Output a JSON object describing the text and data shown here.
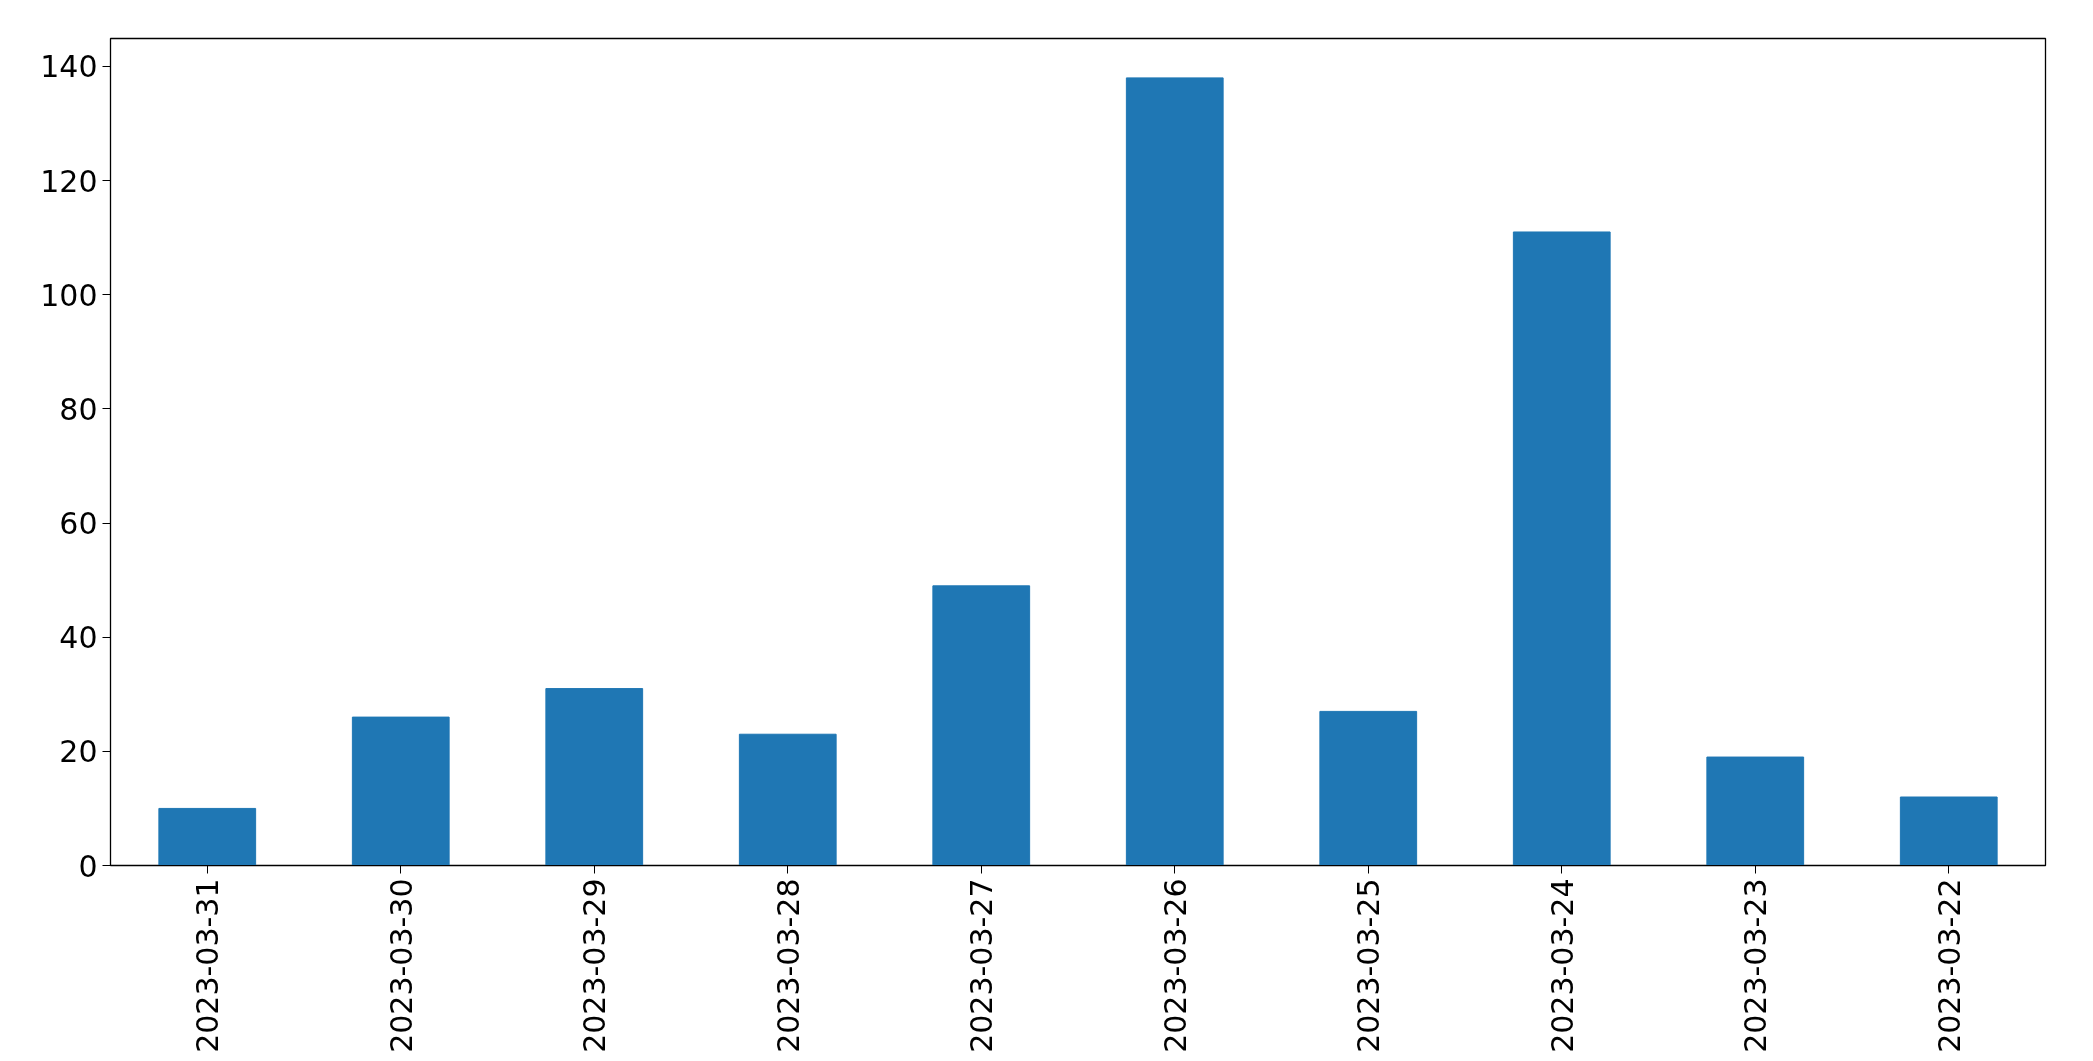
{
  "chart_data": {
    "type": "bar",
    "categories": [
      "2023-03-31",
      "2023-03-30",
      "2023-03-29",
      "2023-03-28",
      "2023-03-27",
      "2023-03-26",
      "2023-03-25",
      "2023-03-24",
      "2023-03-23",
      "2023-03-22"
    ],
    "values": [
      10,
      26,
      31,
      23,
      49,
      138,
      27,
      111,
      19,
      12
    ],
    "color": "#1f77b4",
    "ylim": [
      0,
      144.9
    ],
    "yticks": [
      0,
      20,
      40,
      60,
      80,
      100,
      120,
      140
    ],
    "grid": false
  }
}
